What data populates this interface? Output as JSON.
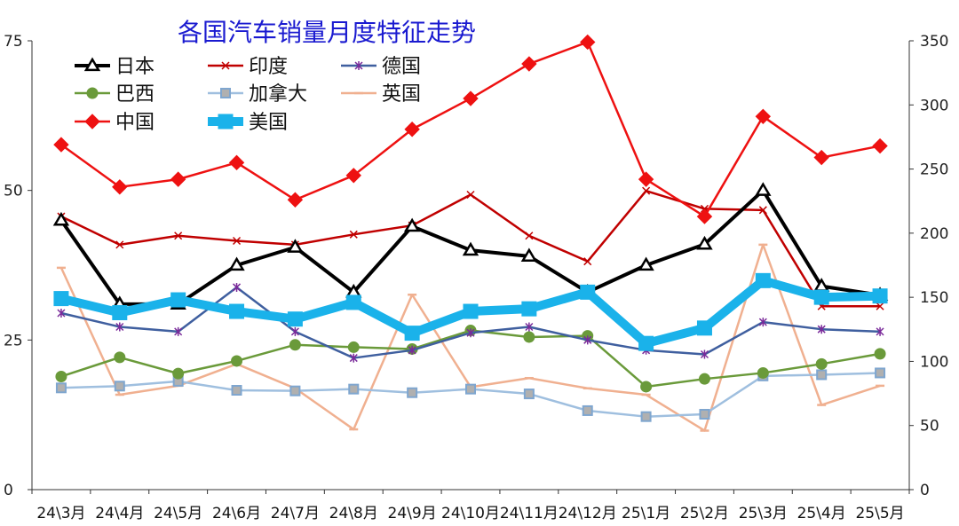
{
  "chart_data": {
    "type": "line",
    "title": "各国汽车销量月度特征走势",
    "categories": [
      "24\\3月",
      "24\\4月",
      "24\\5月",
      "24\\6月",
      "24\\7月",
      "24\\8月",
      "24\\9月",
      "24\\10月",
      "24\\11月",
      "24\\12月",
      "25\\1月",
      "25\\2月",
      "25\\3月",
      "25\\4月",
      "25\\5月"
    ],
    "y_left": {
      "min": 0,
      "max": 75,
      "ticks": [
        0,
        25,
        50,
        75
      ]
    },
    "y_right": {
      "min": 0,
      "max": 350,
      "ticks": [
        0,
        50,
        100,
        150,
        200,
        250,
        300,
        350
      ]
    },
    "grid": false,
    "legend_position": "top-left",
    "series": [
      {
        "name": "日本",
        "axis": "left",
        "color": "#000000",
        "marker": "triangle",
        "width": 4,
        "values": [
          45,
          31,
          31,
          37.5,
          40.5,
          33,
          44,
          40,
          39,
          33,
          37.5,
          41,
          50,
          34,
          32.5
        ]
      },
      {
        "name": "印度",
        "axis": "right",
        "color": "#c00000",
        "marker": "x",
        "width": 2.5,
        "values": [
          213,
          191,
          198,
          194,
          191,
          199,
          206,
          230,
          198,
          178,
          233,
          219,
          218,
          143,
          143
        ]
      },
      {
        "name": "德国",
        "axis": "left",
        "color": "#3f5f9f",
        "marker": "star",
        "width": 2.5,
        "values": [
          29.5,
          27.2,
          26.4,
          33.8,
          26.4,
          22,
          23.3,
          26.2,
          27.2,
          25,
          23.3,
          22.6,
          28,
          26.8,
          26.4
        ]
      },
      {
        "name": "巴西",
        "axis": "left",
        "color": "#6a9a3a",
        "marker": "circle",
        "width": 2.5,
        "values": [
          18.9,
          22.1,
          19.4,
          21.5,
          24.2,
          23.8,
          23.5,
          26.6,
          25.5,
          25.7,
          17.2,
          18.5,
          19.5,
          21,
          22.7
        ]
      },
      {
        "name": "加拿大",
        "axis": "left",
        "color": "#9fbfdf",
        "marker": "square",
        "width": 2.5,
        "values": [
          17,
          17.3,
          18.1,
          16.6,
          16.5,
          16.8,
          16.2,
          16.8,
          16,
          13.2,
          12.2,
          12.6,
          19,
          19.2,
          19.5
        ]
      },
      {
        "name": "英国",
        "axis": "right",
        "color": "#f0b090",
        "marker": "dash",
        "width": 2.5,
        "values": [
          173,
          74,
          81,
          98,
          79,
          47,
          152,
          80,
          87,
          79,
          74,
          46,
          191,
          66,
          81
        ]
      },
      {
        "name": "中国",
        "axis": "right",
        "color": "#ee1111",
        "marker": "diamond",
        "width": 2.5,
        "values": [
          269,
          236,
          242,
          255,
          226,
          245,
          281,
          305,
          332,
          349,
          242,
          213,
          291,
          259,
          268
        ]
      },
      {
        "name": "美国",
        "axis": "right",
        "color": "#1ab2ea",
        "marker": "square-bold",
        "width": 10,
        "values": [
          149,
          138,
          148,
          139,
          133,
          146,
          122,
          139,
          141,
          154,
          114,
          126,
          163,
          150,
          151
        ]
      }
    ]
  }
}
